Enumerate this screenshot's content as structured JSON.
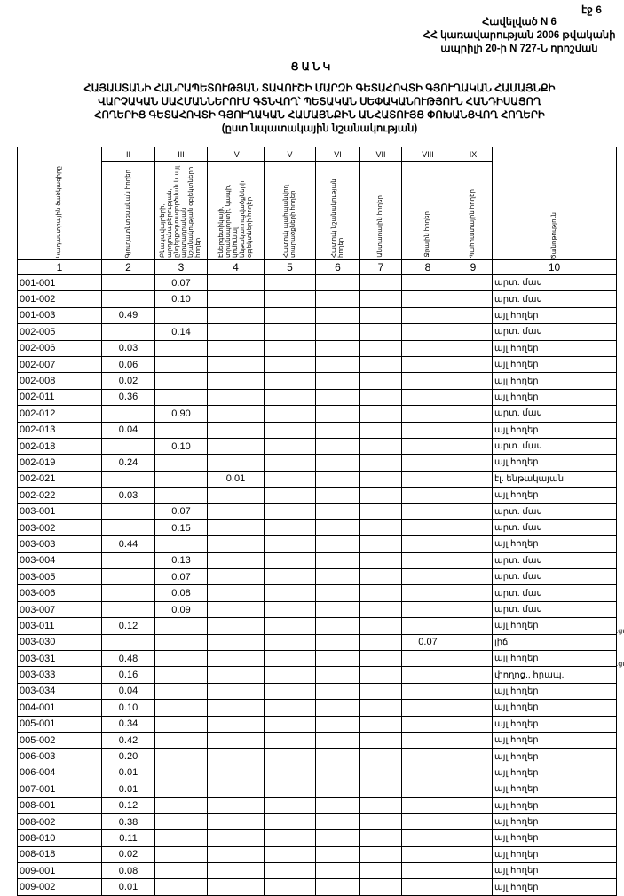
{
  "page_label": "էջ 6",
  "annex": [
    "Հավելված N 6",
    "ՀՀ կառավարության 2006 թվականի",
    "ապրիլի 20-ի N 727-Ն որոշման"
  ],
  "list_title": "ՑԱՆԿ",
  "main_title": [
    "ՀԱՅԱՍՏԱՆԻ ՀԱՆՐԱՊԵՏՈՒԹՅԱՆ ՏԱՎՈՒՇԻ ՄԱՐԶԻ ԳԵՏԱՀՈՎՏԻ ԳՅՈՒՂԱԿԱՆ ՀԱՄԱՅՆՔԻ",
    "ՎԱՐՉԱԿԱՆ ՍԱՀՄԱՆՆԵՐՈՒՄ ԳՏՆՎՈՂ՝ ՊԵՏԱԿԱՆ ՍԵՓԱԿԱՆՈՒԹՅՈՒՆ ՀԱՆԴԻՍԱՑՈՂ",
    "ՀՈՂԵՐԻՑ ԳԵՏԱՀՈՎՏԻ ԳՅՈՒՂԱԿԱՆ ՀԱՄԱՅՆՔԻՆ ԱՆՀԱՏՈՒՅՑ ՓՈԽԱՆՑՎՈՂ ՀՈՂԵՐԻ",
    "(ըստ նպատակային նշանակության)"
  ],
  "table": {
    "roman": [
      "",
      "II",
      "III",
      "IV",
      "V",
      "VI",
      "VII",
      "VIII",
      "IX",
      ""
    ],
    "headers": [
      "Կադաստրային ծածկագիրը",
      "Գյուղատնտեսական հողեր",
      "Բնակավայրերի, արդյունաբերության, ընդերքօգտագործման և այլ արտադրական նշանակության օբյեկտների հողեր",
      "Էներգետիկայի, տրանսպորտի, կապի, կոմունալ ենթակառուցվածքների օբյեկտների հողեր",
      "Հատուկ պահպանվող տարածքների հողեր",
      "Հատուկ նշանակության հողեր",
      "Անտառային հողեր",
      "Ջրային հողեր",
      "Պահուստային հողեր",
      "Ծանոթություն"
    ],
    "numbers": [
      "1",
      "2",
      "3",
      "4",
      "5",
      "6",
      "7",
      "8",
      "9",
      "10"
    ],
    "rows": [
      [
        "001-001",
        "",
        "0.07",
        "",
        "",
        "",
        "",
        "",
        "",
        "արտ. մաս"
      ],
      [
        "001-002",
        "",
        "0.10",
        "",
        "",
        "",
        "",
        "",
        "",
        "արտ. մաս"
      ],
      [
        "001-003",
        "0.49",
        "",
        "",
        "",
        "",
        "",
        "",
        "",
        "այլ հողեր"
      ],
      [
        "002-005",
        "",
        "0.14",
        "",
        "",
        "",
        "",
        "",
        "",
        "արտ. մաս"
      ],
      [
        "002-006",
        "0.03",
        "",
        "",
        "",
        "",
        "",
        "",
        "",
        "այլ հողեր"
      ],
      [
        "002-007",
        "0.06",
        "",
        "",
        "",
        "",
        "",
        "",
        "",
        "այլ հողեր"
      ],
      [
        "002-008",
        "0.02",
        "",
        "",
        "",
        "",
        "",
        "",
        "",
        "այլ հողեր"
      ],
      [
        "002-011",
        "0.36",
        "",
        "",
        "",
        "",
        "",
        "",
        "",
        "այլ հողեր"
      ],
      [
        "002-012",
        "",
        "0.90",
        "",
        "",
        "",
        "",
        "",
        "",
        "արտ. մաս"
      ],
      [
        "002-013",
        "0.04",
        "",
        "",
        "",
        "",
        "",
        "",
        "",
        "այլ հողեր"
      ],
      [
        "002-018",
        "",
        "0.10",
        "",
        "",
        "",
        "",
        "",
        "",
        "արտ. մաս"
      ],
      [
        "002-019",
        "0.24",
        "",
        "",
        "",
        "",
        "",
        "",
        "",
        "այլ հողեր"
      ],
      [
        "002-021",
        "",
        "",
        "0.01",
        "",
        "",
        "",
        "",
        "",
        "էլ. ենթակայան"
      ],
      [
        "002-022",
        "0.03",
        "",
        "",
        "",
        "",
        "",
        "",
        "",
        "այլ հողեր"
      ],
      [
        "003-001",
        "",
        "0.07",
        "",
        "",
        "",
        "",
        "",
        "",
        "արտ. մաս"
      ],
      [
        "003-002",
        "",
        "0.15",
        "",
        "",
        "",
        "",
        "",
        "",
        "արտ. մաս"
      ],
      [
        "003-003",
        "0.44",
        "",
        "",
        "",
        "",
        "",
        "",
        "",
        "այլ հողեր"
      ],
      [
        "003-004",
        "",
        "0.13",
        "",
        "",
        "",
        "",
        "",
        "",
        "արտ. մաս"
      ],
      [
        "003-005",
        "",
        "0.07",
        "",
        "",
        "",
        "",
        "",
        "",
        "արտ. մաս"
      ],
      [
        "003-006",
        "",
        "0.08",
        "",
        "",
        "",
        "",
        "",
        "",
        "արտ. մաս"
      ],
      [
        "003-007",
        "",
        "0.09",
        "",
        "",
        "",
        "",
        "",
        "",
        "արտ. մաս"
      ],
      [
        "003-011",
        "0.12",
        "",
        "",
        "",
        "",
        "",
        "",
        "",
        "այլ հողեր"
      ],
      [
        "003-030",
        "",
        "",
        "",
        "",
        "",
        "",
        "0.07",
        "",
        "լիճ"
      ],
      [
        "003-031",
        "0.48",
        "",
        "",
        "",
        "",
        "",
        "",
        "",
        "այլ հողեր"
      ],
      [
        "003-033",
        "0.16",
        "",
        "",
        "",
        "",
        "",
        "",
        "",
        "փողոց., հրապ."
      ],
      [
        "003-034",
        "0.04",
        "",
        "",
        "",
        "",
        "",
        "",
        "",
        "այլ հողեր"
      ],
      [
        "004-001",
        "0.10",
        "",
        "",
        "",
        "",
        "",
        "",
        "",
        "այլ հողեր"
      ],
      [
        "005-001",
        "0.34",
        "",
        "",
        "",
        "",
        "",
        "",
        "",
        "այլ հողեր"
      ],
      [
        "005-002",
        "0.42",
        "",
        "",
        "",
        "",
        "",
        "",
        "",
        "այլ հողեր"
      ],
      [
        "006-003",
        "0.20",
        "",
        "",
        "",
        "",
        "",
        "",
        "",
        "այլ հողեր"
      ],
      [
        "006-004",
        "0.01",
        "",
        "",
        "",
        "",
        "",
        "",
        "",
        "այլ հողեր"
      ],
      [
        "007-001",
        "0.01",
        "",
        "",
        "",
        "",
        "",
        "",
        "",
        "այլ հողեր"
      ],
      [
        "008-001",
        "0.12",
        "",
        "",
        "",
        "",
        "",
        "",
        "",
        "այլ հողեր"
      ],
      [
        "008-002",
        "0.38",
        "",
        "",
        "",
        "",
        "",
        "",
        "",
        "այլ հողեր"
      ],
      [
        "008-010",
        "0.11",
        "",
        "",
        "",
        "",
        "",
        "",
        "",
        "այլ հողեր"
      ],
      [
        "008-018",
        "0.02",
        "",
        "",
        "",
        "",
        "",
        "",
        "",
        "այլ հողեր"
      ],
      [
        "009-001",
        "0.08",
        "",
        "",
        "",
        "",
        "",
        "",
        "",
        "այլ հողեր"
      ],
      [
        "009-002",
        "0.01",
        "",
        "",
        "",
        "",
        "",
        "",
        "",
        "այլ հողեր"
      ]
    ]
  },
  "margin_notes": [
    ".ցմ",
    ".ցմ"
  ]
}
